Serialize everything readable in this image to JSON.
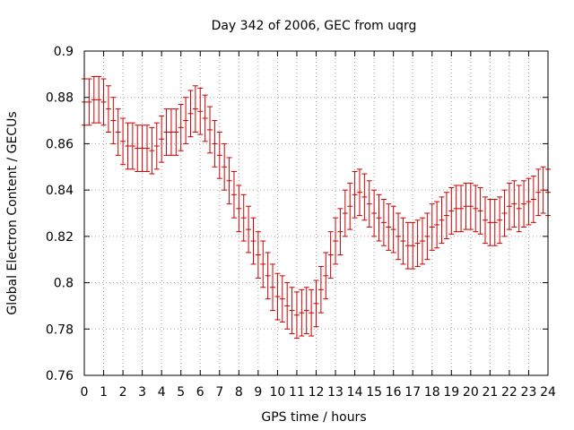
{
  "chart_data": {
    "type": "scatter",
    "title": "Day 342 of 2006, GEC from uqrg",
    "xlabel": "GPS time / hours",
    "ylabel": "Global Electron Content / GECUs",
    "xlim": [
      0,
      24
    ],
    "ylim": [
      0.76,
      0.9
    ],
    "x_ticks": [
      "0",
      "1",
      "2",
      "3",
      "4",
      "5",
      "6",
      "7",
      "8",
      "9",
      "10",
      "11",
      "12",
      "13",
      "14",
      "15",
      "16",
      "17",
      "18",
      "19",
      "20",
      "21",
      "22",
      "23",
      "24"
    ],
    "y_ticks": [
      "0.76",
      "0.78",
      "0.8",
      "0.82",
      "0.84",
      "0.86",
      "0.88",
      "0.9"
    ],
    "grid": true,
    "error_bar": 0.01,
    "series": [
      {
        "color": "#cc0000",
        "points": [
          [
            0.0,
            0.878
          ],
          [
            0.25,
            0.878
          ],
          [
            0.5,
            0.879
          ],
          [
            0.75,
            0.879
          ],
          [
            1.0,
            0.878
          ],
          [
            1.25,
            0.875
          ],
          [
            1.5,
            0.87
          ],
          [
            1.75,
            0.865
          ],
          [
            2.0,
            0.861
          ],
          [
            2.25,
            0.859
          ],
          [
            2.5,
            0.859
          ],
          [
            2.75,
            0.858
          ],
          [
            3.0,
            0.858
          ],
          [
            3.25,
            0.858
          ],
          [
            3.5,
            0.857
          ],
          [
            3.75,
            0.859
          ],
          [
            4.0,
            0.862
          ],
          [
            4.25,
            0.865
          ],
          [
            4.5,
            0.865
          ],
          [
            4.75,
            0.865
          ],
          [
            5.0,
            0.867
          ],
          [
            5.25,
            0.87
          ],
          [
            5.5,
            0.873
          ],
          [
            5.75,
            0.875
          ],
          [
            6.0,
            0.874
          ],
          [
            6.25,
            0.871
          ],
          [
            6.5,
            0.866
          ],
          [
            6.75,
            0.86
          ],
          [
            7.0,
            0.855
          ],
          [
            7.25,
            0.85
          ],
          [
            7.5,
            0.844
          ],
          [
            7.75,
            0.838
          ],
          [
            8.0,
            0.832
          ],
          [
            8.25,
            0.828
          ],
          [
            8.5,
            0.823
          ],
          [
            8.75,
            0.818
          ],
          [
            9.0,
            0.812
          ],
          [
            9.25,
            0.808
          ],
          [
            9.5,
            0.803
          ],
          [
            9.75,
            0.798
          ],
          [
            10.0,
            0.794
          ],
          [
            10.25,
            0.793
          ],
          [
            10.5,
            0.79
          ],
          [
            10.75,
            0.788
          ],
          [
            11.0,
            0.786
          ],
          [
            11.25,
            0.787
          ],
          [
            11.5,
            0.788
          ],
          [
            11.75,
            0.787
          ],
          [
            12.0,
            0.791
          ],
          [
            12.25,
            0.797
          ],
          [
            12.5,
            0.803
          ],
          [
            12.75,
            0.812
          ],
          [
            13.0,
            0.818
          ],
          [
            13.25,
            0.822
          ],
          [
            13.5,
            0.83
          ],
          [
            13.75,
            0.833
          ],
          [
            14.0,
            0.838
          ],
          [
            14.25,
            0.839
          ],
          [
            14.5,
            0.837
          ],
          [
            14.75,
            0.834
          ],
          [
            15.0,
            0.83
          ],
          [
            15.25,
            0.828
          ],
          [
            15.5,
            0.826
          ],
          [
            15.75,
            0.824
          ],
          [
            16.0,
            0.823
          ],
          [
            16.25,
            0.82
          ],
          [
            16.5,
            0.818
          ],
          [
            16.75,
            0.816
          ],
          [
            17.0,
            0.816
          ],
          [
            17.25,
            0.817
          ],
          [
            17.5,
            0.818
          ],
          [
            17.75,
            0.82
          ],
          [
            18.0,
            0.824
          ],
          [
            18.25,
            0.825
          ],
          [
            18.5,
            0.827
          ],
          [
            18.75,
            0.829
          ],
          [
            19.0,
            0.831
          ],
          [
            19.25,
            0.832
          ],
          [
            19.5,
            0.832
          ],
          [
            19.75,
            0.833
          ],
          [
            20.0,
            0.833
          ],
          [
            20.25,
            0.832
          ],
          [
            20.5,
            0.831
          ],
          [
            20.75,
            0.827
          ],
          [
            21.0,
            0.826
          ],
          [
            21.25,
            0.826
          ],
          [
            21.5,
            0.827
          ],
          [
            21.75,
            0.83
          ],
          [
            22.0,
            0.833
          ],
          [
            22.25,
            0.834
          ],
          [
            22.5,
            0.832
          ],
          [
            22.75,
            0.834
          ],
          [
            23.0,
            0.835
          ],
          [
            23.25,
            0.836
          ],
          [
            23.5,
            0.839
          ],
          [
            23.75,
            0.84
          ],
          [
            24.0,
            0.839
          ]
        ]
      }
    ]
  }
}
